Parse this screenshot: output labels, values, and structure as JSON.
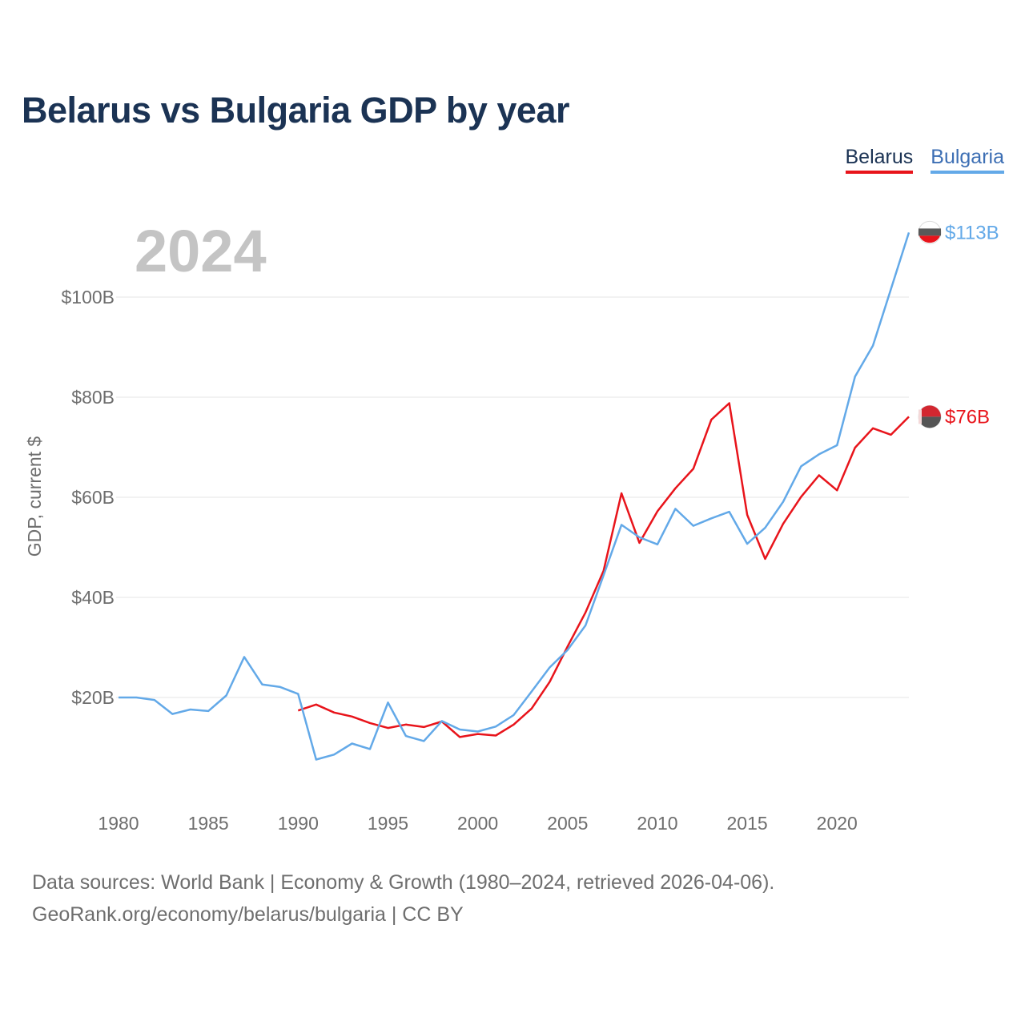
{
  "title": "Belarus vs Bulgaria GDP by year",
  "legend": [
    {
      "label": "Belarus",
      "color": "#e8141b"
    },
    {
      "label": "Bulgaria",
      "color": "#63a9e8"
    }
  ],
  "year_watermark": "2024",
  "chart_data": {
    "type": "line",
    "title": "Belarus vs Bulgaria GDP by year",
    "xlabel": "",
    "ylabel": "GDP, current $",
    "xlim": [
      1980,
      2024
    ],
    "ylim": [
      0,
      120
    ],
    "x_ticks": [
      1980,
      1985,
      1990,
      1995,
      2000,
      2005,
      2010,
      2015,
      2020
    ],
    "y_ticks": [
      20,
      40,
      60,
      80,
      100
    ],
    "y_tick_labels": [
      "$20B",
      "$40B",
      "$60B",
      "$80B",
      "$100B"
    ],
    "grid": "horizontal",
    "series": [
      {
        "name": "Belarus",
        "color": "#e8141b",
        "end_label": "$76B",
        "x": [
          1990,
          1991,
          1992,
          1993,
          1994,
          1995,
          1996,
          1997,
          1998,
          1999,
          2000,
          2001,
          2002,
          2003,
          2004,
          2005,
          2006,
          2007,
          2008,
          2009,
          2010,
          2011,
          2012,
          2013,
          2014,
          2015,
          2016,
          2017,
          2018,
          2019,
          2020,
          2021,
          2022,
          2023,
          2024
        ],
        "values": [
          17.4,
          18.6,
          17.0,
          16.2,
          14.9,
          13.9,
          14.6,
          14.1,
          15.2,
          12.1,
          12.7,
          12.4,
          14.6,
          17.8,
          23.1,
          30.2,
          37.0,
          45.3,
          60.8,
          50.9,
          57.2,
          61.8,
          65.7,
          75.5,
          78.8,
          56.5,
          47.7,
          54.7,
          60.1,
          64.4,
          61.4,
          69.9,
          73.8,
          72.5,
          76.1
        ]
      },
      {
        "name": "Bulgaria",
        "color": "#63a9e8",
        "end_label": "$113B",
        "x": [
          1980,
          1981,
          1982,
          1983,
          1984,
          1985,
          1986,
          1987,
          1988,
          1989,
          1990,
          1991,
          1992,
          1993,
          1994,
          1995,
          1996,
          1997,
          1998,
          1999,
          2000,
          2001,
          2002,
          2003,
          2004,
          2005,
          2006,
          2007,
          2008,
          2009,
          2010,
          2011,
          2012,
          2013,
          2014,
          2015,
          2016,
          2017,
          2018,
          2019,
          2020,
          2021,
          2022,
          2023,
          2024
        ],
        "values": [
          20.0,
          20.0,
          19.5,
          16.7,
          17.6,
          17.3,
          20.4,
          28.1,
          22.6,
          22.1,
          20.7,
          7.6,
          8.6,
          10.8,
          9.7,
          19.0,
          12.3,
          11.3,
          15.3,
          13.6,
          13.2,
          14.2,
          16.5,
          21.2,
          26.0,
          29.5,
          34.4,
          44.4,
          54.5,
          52.0,
          50.6,
          57.7,
          54.3,
          55.8,
          57.1,
          50.7,
          53.9,
          59.1,
          66.2,
          68.6,
          70.4,
          84.1,
          90.3,
          101.6,
          112.9
        ]
      }
    ]
  },
  "footer": {
    "line1": "Data sources: World Bank | Economy & Growth (1980–2024, retrieved 2026-04-06).",
    "line2": "GeoRank.org/economy/belarus/bulgaria | CC BY"
  }
}
